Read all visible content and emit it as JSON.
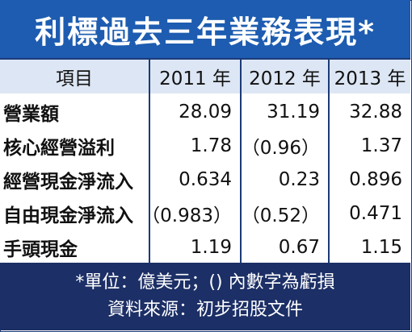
{
  "title": "利標過去三年業務表現*",
  "headers": [
    "項目",
    "2011 年",
    "2012 年",
    "2013 年"
  ],
  "rows": [
    {
      "label": "營業額",
      "v2011": "28.09",
      "v2012": "31.19",
      "v2013": "32.88"
    },
    {
      "label": "核心經營溢利",
      "v2011": "1.78",
      "v2012": "（0.96）",
      "v2013": "1.37"
    },
    {
      "label": "經營現金淨流入",
      "v2011": "0.634",
      "v2012": "0.23",
      "v2013": "0.896"
    },
    {
      "label": "自由現金淨流入",
      "v2011": "（0.983）",
      "v2012": "（0.52）",
      "v2013": "0.471"
    },
    {
      "label": "手頭現金",
      "v2011": "1.19",
      "v2012": "0.67",
      "v2013": "1.15"
    }
  ],
  "footnotes": [
    "*單位：億美元；() 內數字為虧損",
    "資料來源：初步招股文件"
  ],
  "colors": {
    "title_bg": "#1d5cb0",
    "header_bg": "#dde6f4",
    "footer_bg": "#1c2f66",
    "border": "#1b3a78"
  },
  "chart_data": {
    "type": "table",
    "title": "利標過去三年業務表現*",
    "columns": [
      "項目",
      "2011 年",
      "2012 年",
      "2013 年"
    ],
    "rows": [
      [
        "營業額",
        28.09,
        31.19,
        32.88
      ],
      [
        "核心經營溢利",
        1.78,
        -0.96,
        1.37
      ],
      [
        "經營現金淨流入",
        0.634,
        0.23,
        0.896
      ],
      [
        "自由現金淨流入",
        -0.983,
        -0.52,
        0.471
      ],
      [
        "手頭現金",
        1.19,
        0.67,
        1.15
      ]
    ]
  }
}
